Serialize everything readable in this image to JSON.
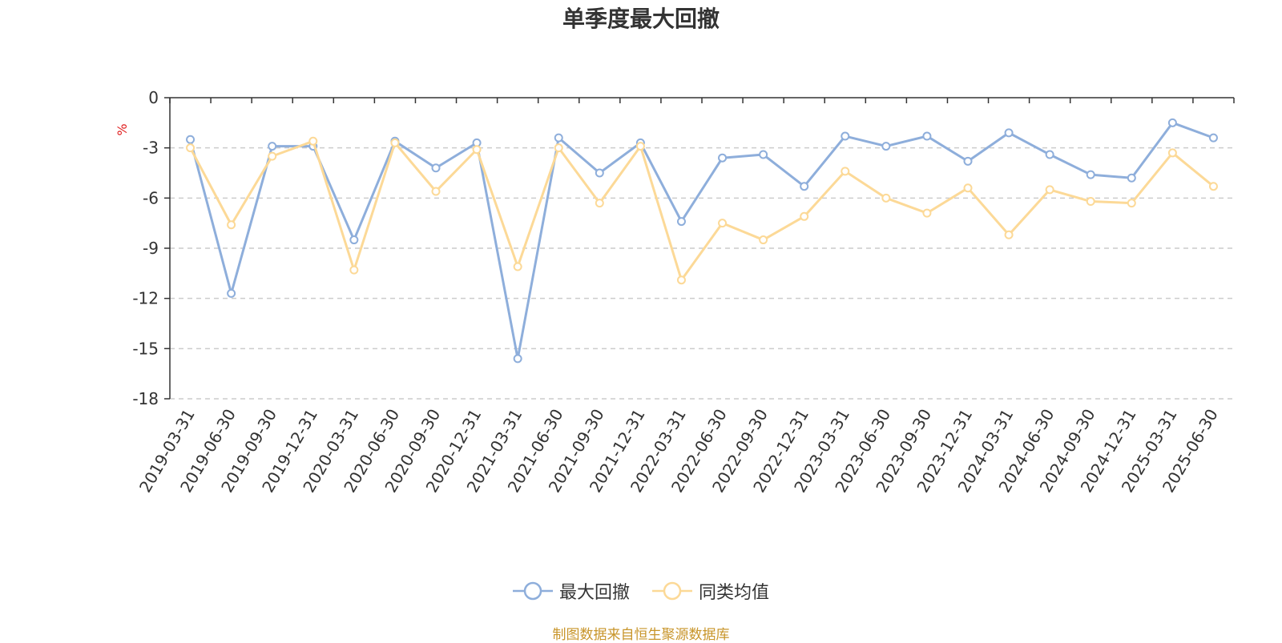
{
  "chart_data": {
    "type": "line",
    "title": "单季度最大回撤",
    "ylabel": "%",
    "xlabel": "",
    "ylim": [
      -18,
      0
    ],
    "yticks": [
      0,
      -3,
      -6,
      -9,
      -12,
      -15,
      -18
    ],
    "categories": [
      "2019-03-31",
      "2019-06-30",
      "2019-09-30",
      "2019-12-31",
      "2020-03-31",
      "2020-06-30",
      "2020-09-30",
      "2020-12-31",
      "2021-03-31",
      "2021-06-30",
      "2021-09-30",
      "2021-12-31",
      "2022-03-31",
      "2022-06-30",
      "2022-09-30",
      "2022-12-31",
      "2023-03-31",
      "2023-06-30",
      "2023-09-30",
      "2023-12-31",
      "2024-03-31",
      "2024-06-30",
      "2024-09-30",
      "2024-12-31",
      "2025-03-31",
      "2025-06-30"
    ],
    "series": [
      {
        "name": "最大回撤",
        "color": "#8eaedb",
        "values": [
          -2.5,
          -11.7,
          -2.9,
          -2.9,
          -8.5,
          -2.6,
          -4.2,
          -2.7,
          -15.6,
          -2.4,
          -4.5,
          -2.7,
          -7.4,
          -3.6,
          -3.4,
          -5.3,
          -2.3,
          -2.9,
          -2.3,
          -3.8,
          -2.1,
          -3.4,
          -4.6,
          -4.8,
          -1.5,
          -2.4
        ]
      },
      {
        "name": "同类均值",
        "color": "#fcd997",
        "values": [
          -3.0,
          -7.6,
          -3.5,
          -2.6,
          -10.3,
          -2.7,
          -5.6,
          -3.1,
          -10.1,
          -3.0,
          -6.3,
          -2.9,
          -10.9,
          -7.5,
          -8.5,
          -7.1,
          -4.4,
          -6.0,
          -6.9,
          -5.4,
          -8.2,
          -5.5,
          -6.2,
          -6.3,
          -3.3,
          -5.3
        ]
      }
    ],
    "grid": true,
    "legend_position": "bottom-center",
    "source_note": "制图数据来自恒生聚源数据库"
  }
}
